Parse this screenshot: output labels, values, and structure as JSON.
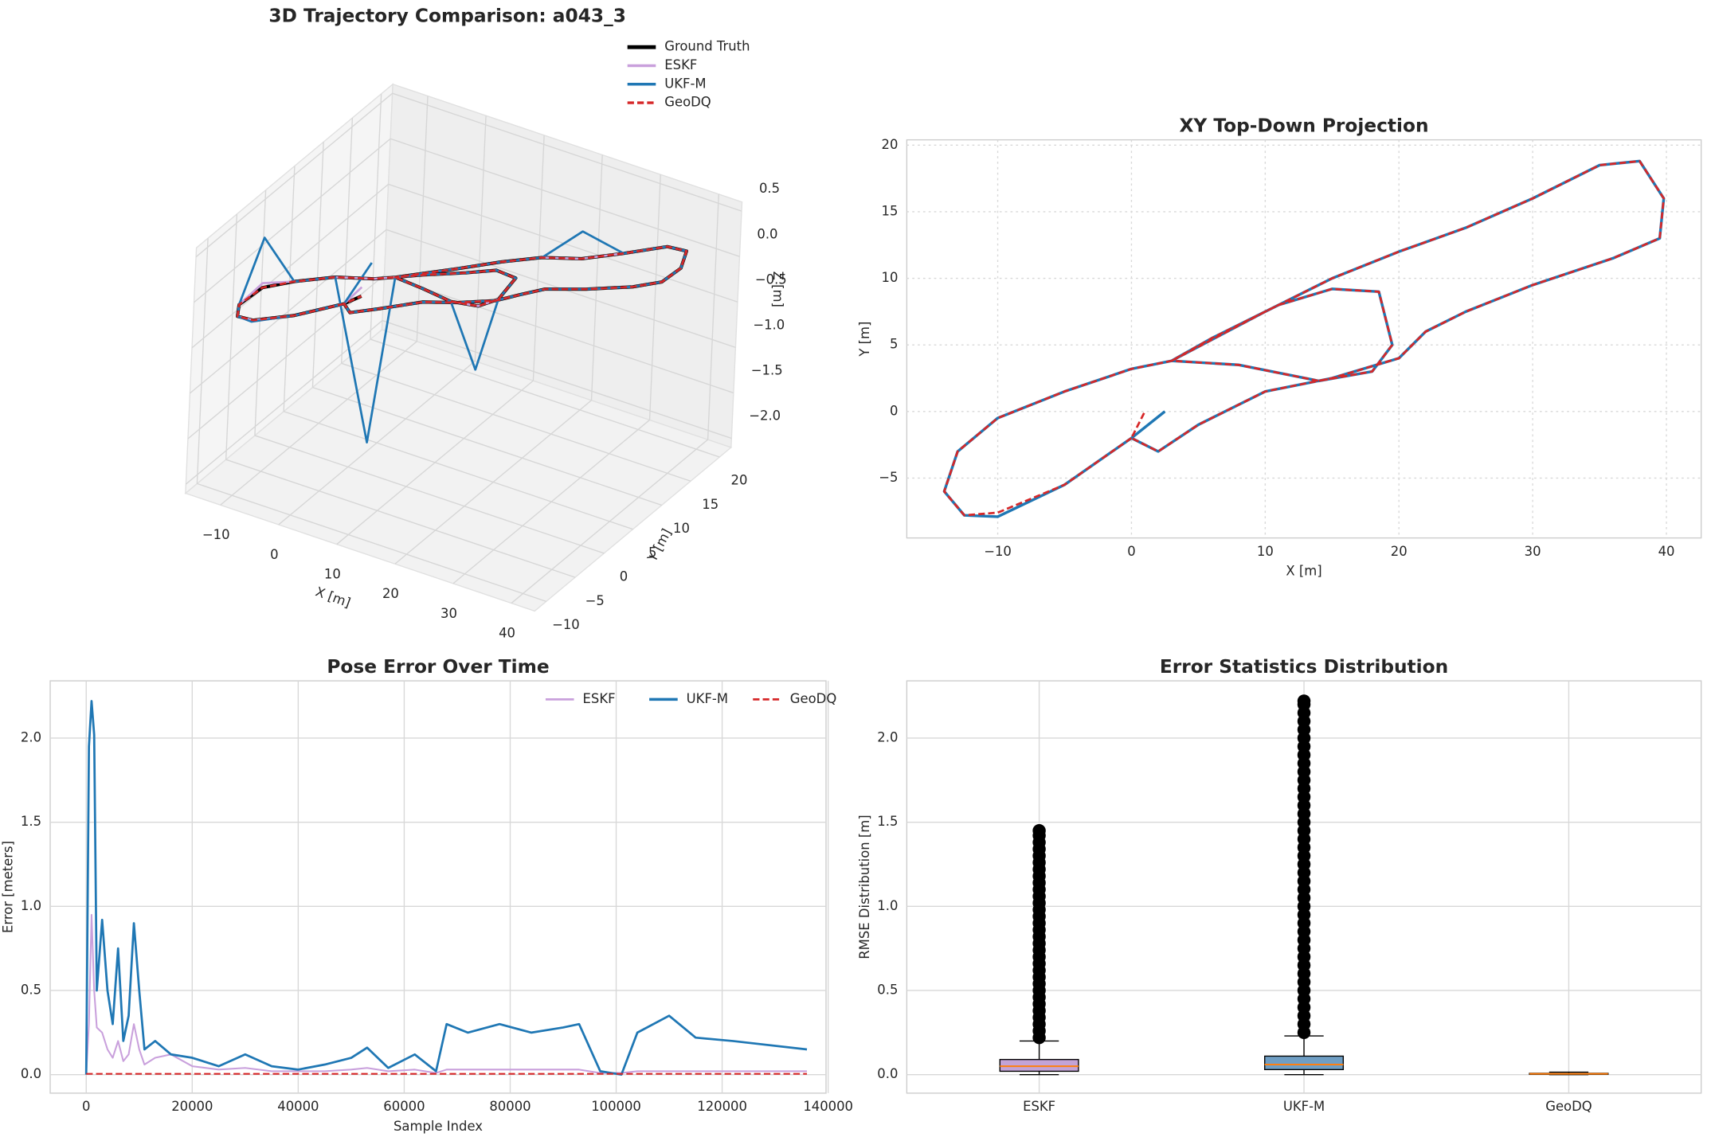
{
  "chart_data": [
    {
      "type": "line3d",
      "title": "3D Trajectory Comparison: a043_3",
      "xlabel": "X [m]",
      "ylabel": "Y [m]",
      "zlabel": "Z [m]",
      "xlim": [
        -16,
        44
      ],
      "ylim": [
        -12,
        22
      ],
      "zlim": [
        -2.1,
        0.6
      ],
      "xticks": [
        {
          "value": -10,
          "label": "−10"
        },
        0,
        10,
        20,
        30,
        40
      ],
      "yticks": [
        {
          "value": -10,
          "label": "−10"
        },
        {
          "value": -5,
          "label": "−5"
        },
        0,
        5,
        10,
        15,
        20
      ],
      "zticks": [
        {
          "value": -2,
          "label": "−2.0"
        },
        {
          "value": -1.5,
          "label": "−1.5"
        },
        {
          "value": -1,
          "label": "−1.0"
        },
        {
          "value": -0.5,
          "label": "−0.5"
        },
        {
          "value": 0,
          "label": "0.0"
        },
        0.5
      ],
      "grid": true,
      "legend": "upper right",
      "series": [
        {
          "name": "Ground Truth",
          "color": "#000000",
          "width": 3,
          "dash": false,
          "x": [
            0,
            -5,
            -10,
            -12.5,
            -14,
            -13,
            -10,
            -5,
            0,
            3,
            8,
            14,
            18,
            19.5,
            18.5,
            15,
            11,
            6,
            3,
            10,
            15,
            20,
            25,
            30,
            35,
            38,
            39.8,
            39.5,
            36,
            30,
            25,
            22,
            20,
            15,
            10,
            5,
            2,
            0,
            1
          ],
          "y": [
            -2,
            -5.5,
            -7.6,
            -7.8,
            -6,
            -3,
            -0.5,
            1.5,
            3.2,
            3.8,
            3.5,
            2.3,
            3,
            5,
            9,
            9.2,
            8,
            5.5,
            3.8,
            7.5,
            10,
            12,
            13.8,
            16,
            18.5,
            18.8,
            16,
            13,
            11.5,
            9.5,
            7.5,
            6,
            4,
            2.5,
            1.5,
            -1,
            -3,
            -2,
            0
          ],
          "z": [
            -0.2,
            -0.25,
            -0.3,
            -0.3,
            -0.3,
            -0.25,
            -0.25,
            -0.2,
            -0.2,
            -0.15,
            -0.15,
            -0.1,
            -0.1,
            -0.1,
            -0.1,
            -0.1,
            -0.15,
            -0.15,
            -0.15,
            -0.1,
            -0.05,
            0,
            0,
            0.05,
            0.1,
            0.1,
            0.1,
            0.1,
            0.05,
            0,
            0,
            -0.05,
            -0.05,
            -0.1,
            -0.15,
            -0.2,
            -0.2,
            -0.2,
            -0.2
          ]
        },
        {
          "name": "ESKF",
          "color": "#c9a0dc",
          "width": 2,
          "dash": false,
          "x": [
            0,
            -5,
            -10,
            -12.5,
            -14,
            -13,
            -10,
            -5,
            0,
            3,
            8,
            14,
            18,
            19.5,
            18.5,
            15,
            11,
            6,
            3,
            10,
            15,
            20,
            25,
            30,
            35,
            38,
            39.8,
            39.5,
            36,
            30,
            25,
            22,
            20,
            15,
            10,
            5,
            2,
            0,
            1
          ],
          "y": [
            -2,
            -5.5,
            -7.6,
            -7.8,
            -6,
            -3,
            -0.5,
            1.5,
            3.2,
            3.8,
            3.5,
            2.3,
            3,
            5,
            9,
            9.2,
            8,
            5.5,
            3.8,
            7.5,
            10,
            12,
            13.8,
            16,
            18.5,
            18.8,
            16,
            13,
            11.5,
            9.5,
            7.5,
            6,
            4,
            2.5,
            1.5,
            -1,
            -3,
            -2,
            0
          ],
          "z": [
            -0.2,
            -0.25,
            -0.3,
            -0.3,
            -0.3,
            -0.2,
            -0.25,
            -0.2,
            -0.2,
            -0.15,
            -0.15,
            -0.1,
            -0.1,
            -0.1,
            -0.1,
            -0.1,
            -0.15,
            -0.15,
            -0.15,
            -0.1,
            -0.05,
            0,
            0,
            0.05,
            0.1,
            0.1,
            0.1,
            0.1,
            0.05,
            0,
            0,
            -0.05,
            -0.05,
            -0.1,
            -0.15,
            -0.2,
            -0.2,
            -0.2,
            -0.1
          ]
        },
        {
          "name": "UKF-M",
          "color": "#1f77b4",
          "width": 2,
          "dash": false,
          "x": [
            0,
            -5,
            -10,
            -12.5,
            -14,
            -13,
            -10,
            -5,
            0,
            3,
            8,
            14,
            18,
            19.5,
            18.5,
            15,
            11,
            6,
            3,
            10,
            15,
            20,
            25,
            30,
            35,
            38,
            39.8,
            39.5,
            36,
            30,
            25,
            22,
            20,
            15,
            10,
            5,
            2,
            0,
            2.5
          ],
          "y": [
            -2,
            -5.5,
            -7.9,
            -7.8,
            -6,
            -3,
            -0.5,
            1.5,
            3.2,
            3.8,
            3.5,
            2.3,
            3,
            5,
            9,
            9.2,
            8,
            5.5,
            3.8,
            7.5,
            10,
            12,
            13.8,
            16,
            18.5,
            18.8,
            16,
            13,
            11.5,
            9.5,
            7.5,
            6,
            4,
            2.5,
            1.5,
            -1,
            -3,
            -2,
            0
          ],
          "z": [
            -0.2,
            -0.25,
            -0.3,
            -0.3,
            -0.3,
            0.3,
            -0.25,
            -0.2,
            -2,
            -0.15,
            -0.15,
            -0.1,
            -0.8,
            -0.1,
            -0.1,
            -0.1,
            -0.15,
            -0.15,
            -0.15,
            -0.1,
            -0.05,
            0,
            0.3,
            0.05,
            0.1,
            0.1,
            0.1,
            0.1,
            0.05,
            0,
            0,
            -0.05,
            -0.05,
            -0.1,
            -0.15,
            -0.2,
            -0.2,
            -0.2,
            0.2
          ]
        },
        {
          "name": "GeoDQ",
          "color": "#d62728",
          "width": 2,
          "dash": true,
          "x": [
            0,
            -5,
            -10,
            -12.5,
            -14,
            -13,
            -10,
            -5,
            0,
            3,
            8,
            14,
            18,
            19.5,
            18.5,
            15,
            11,
            6,
            3,
            10,
            15,
            20,
            25,
            30,
            35,
            38,
            39.8,
            39.5,
            36,
            30,
            25,
            22,
            20,
            15,
            10,
            5,
            2,
            0,
            1
          ],
          "y": [
            -2,
            -5.5,
            -7.6,
            -7.8,
            -6,
            -3,
            -0.5,
            1.5,
            3.2,
            3.8,
            3.5,
            2.3,
            3,
            5,
            9,
            9.2,
            8,
            5.5,
            3.8,
            7.5,
            10,
            12,
            13.8,
            16,
            18.5,
            18.8,
            16,
            13,
            11.5,
            9.5,
            7.5,
            6,
            4,
            2.5,
            1.5,
            -1,
            -3,
            -2,
            0
          ],
          "z": [
            -0.2,
            -0.25,
            -0.3,
            -0.3,
            -0.3,
            -0.25,
            -0.25,
            -0.2,
            -0.2,
            -0.15,
            -0.15,
            -0.1,
            -0.1,
            -0.1,
            -0.1,
            -0.1,
            -0.15,
            -0.15,
            -0.15,
            -0.1,
            -0.05,
            0,
            0,
            0.05,
            0.1,
            0.1,
            0.1,
            0.1,
            0.05,
            0,
            0,
            -0.05,
            -0.05,
            -0.1,
            -0.15,
            -0.2,
            -0.2,
            -0.2,
            -0.2
          ]
        }
      ]
    },
    {
      "type": "line",
      "title": "XY Top-Down Projection",
      "xlabel": "X [m]",
      "ylabel": "Y [m]",
      "xlim": [
        -16.8,
        42.6
      ],
      "ylim": [
        -9.5,
        20.4
      ],
      "xticks": [
        {
          "value": -10,
          "label": "−10"
        },
        0,
        10,
        20,
        30,
        40
      ],
      "yticks": [
        {
          "value": -5,
          "label": "−5"
        },
        0,
        5,
        10,
        15,
        20
      ],
      "grid": true,
      "grid_style": "dotted",
      "series": [
        {
          "color": "#1f77b4",
          "width": 2.5,
          "dash": false,
          "x": [
            0,
            -5,
            -10,
            -12.5,
            -14,
            -13,
            -10,
            -5,
            0,
            3,
            8,
            14,
            18,
            19.5,
            18.5,
            15,
            11,
            6,
            3,
            10,
            15,
            20,
            25,
            30,
            35,
            38,
            39.8,
            39.5,
            36,
            30,
            25,
            22,
            20,
            15,
            10,
            5,
            2,
            0,
            2.5
          ],
          "values": [
            -2,
            -5.5,
            -7.9,
            -7.8,
            -6,
            -3,
            -0.5,
            1.5,
            3.2,
            3.8,
            3.5,
            2.3,
            3,
            5,
            9,
            9.2,
            8,
            5.5,
            3.8,
            7.5,
            10,
            12,
            13.8,
            16,
            18.5,
            18.8,
            16,
            13,
            11.5,
            9.5,
            7.5,
            6,
            4,
            2.5,
            1.5,
            -1,
            -3,
            -2,
            0
          ]
        },
        {
          "color": "#d62728",
          "width": 2,
          "dash": true,
          "x": [
            0,
            -5,
            -10,
            -12.5,
            -14,
            -13,
            -10,
            -5,
            0,
            3,
            8,
            14,
            18,
            19.5,
            18.5,
            15,
            11,
            6,
            3,
            10,
            15,
            20,
            25,
            30,
            35,
            38,
            39.8,
            39.5,
            36,
            30,
            25,
            22,
            20,
            15,
            10,
            5,
            2,
            0,
            1
          ],
          "values": [
            -2,
            -5.5,
            -7.6,
            -7.8,
            -6,
            -3,
            -0.5,
            1.5,
            3.2,
            3.8,
            3.5,
            2.3,
            3,
            5,
            9,
            9.2,
            8,
            5.5,
            3.8,
            7.5,
            10,
            12,
            13.8,
            16,
            18.5,
            18.8,
            16,
            13,
            11.5,
            9.5,
            7.5,
            6,
            4,
            2.5,
            1.5,
            -1,
            -3,
            -2,
            0
          ]
        }
      ]
    },
    {
      "type": "line",
      "title": "Pose Error Over Time",
      "xlabel": "Sample Index",
      "ylabel": "Error [meters]",
      "xlim": [
        -6800,
        139600
      ],
      "ylim": [
        -0.11,
        2.34
      ],
      "xticks": [
        0,
        20000,
        40000,
        60000,
        80000,
        100000,
        120000,
        140000
      ],
      "yticks": [
        {
          "value": 0,
          "label": "0.0"
        },
        0.5,
        {
          "value": 1,
          "label": "1.0"
        },
        1.5,
        {
          "value": 2,
          "label": "2.0"
        }
      ],
      "grid": true,
      "grid_style": "solid",
      "legend": "upper right",
      "x": [
        0,
        500,
        1000,
        1500,
        2000,
        3000,
        4000,
        5000,
        6000,
        7000,
        8000,
        9000,
        10000,
        11000,
        13000,
        16000,
        20000,
        25000,
        30000,
        35000,
        40000,
        45000,
        50000,
        53000,
        57000,
        62000,
        66000,
        68000,
        72000,
        78000,
        84000,
        90000,
        93000,
        97000,
        101000,
        104000,
        110000,
        115000,
        122000,
        136000
      ],
      "series": [
        {
          "name": "ESKF",
          "color": "#c9a0dc",
          "width": 1.5,
          "dash": false,
          "values": [
            0,
            0.3,
            0.95,
            0.5,
            0.28,
            0.25,
            0.15,
            0.1,
            0.2,
            0.08,
            0.12,
            0.3,
            0.15,
            0.06,
            0.1,
            0.12,
            0.05,
            0.03,
            0.04,
            0.02,
            0.02,
            0.02,
            0.03,
            0.04,
            0.02,
            0.03,
            0.01,
            0.03,
            0.03,
            0.03,
            0.03,
            0.03,
            0.03,
            0.01,
            0.01,
            0.02,
            0.02,
            0.02,
            0.02,
            0.02
          ]
        },
        {
          "name": "UKF-M",
          "color": "#1f77b4",
          "width": 2,
          "dash": false,
          "values": [
            0,
            1.95,
            2.22,
            2.02,
            0.5,
            0.92,
            0.5,
            0.3,
            0.75,
            0.2,
            0.35,
            0.9,
            0.5,
            0.15,
            0.2,
            0.12,
            0.1,
            0.05,
            0.12,
            0.05,
            0.03,
            0.06,
            0.1,
            0.16,
            0.04,
            0.12,
            0.02,
            0.3,
            0.25,
            0.3,
            0.25,
            0.28,
            0.3,
            0.02,
            0,
            0.25,
            0.35,
            0.22,
            0.2,
            0.15
          ]
        },
        {
          "name": "GeoDQ",
          "color": "#d62728",
          "width": 1.5,
          "dash": true,
          "values": [
            0.005,
            0.005,
            0.005,
            0.005,
            0.005,
            0.005,
            0.005,
            0.005,
            0.005,
            0.005,
            0.005,
            0.005,
            0.005,
            0.005,
            0.005,
            0.005,
            0.005,
            0.005,
            0.005,
            0.005,
            0.005,
            0.005,
            0.005,
            0.005,
            0.005,
            0.005,
            0.005,
            0.005,
            0.005,
            0.005,
            0.005,
            0.005,
            0.005,
            0.005,
            0.005,
            0.005,
            0.005,
            0.005,
            0.005,
            0.005
          ]
        }
      ]
    },
    {
      "type": "box",
      "title": "Error Statistics Distribution",
      "ylabel": "RMSE Distribution [m]",
      "ylim": [
        -0.11,
        2.34
      ],
      "yticks": [
        {
          "value": 0,
          "label": "0.0"
        },
        0.5,
        {
          "value": 1,
          "label": "1.0"
        },
        1.5,
        {
          "value": 2,
          "label": "2.0"
        }
      ],
      "grid": true,
      "median_color": "#ff7f0e",
      "categories": [
        "ESKF",
        "UKF-M",
        "GeoDQ"
      ],
      "boxes": [
        {
          "color": "#c3a3d6",
          "whislo": 0,
          "q1": 0.02,
          "med": 0.05,
          "q3": 0.09,
          "whishi": 0.2,
          "fliers": [
            0.22,
            0.26,
            0.3,
            0.34,
            0.38,
            0.42,
            0.46,
            0.5,
            0.54,
            0.58,
            0.62,
            0.66,
            0.7,
            0.74,
            0.78,
            0.82,
            0.86,
            0.9,
            0.94,
            0.98,
            1.02,
            1.06,
            1.1,
            1.14,
            1.18,
            1.22,
            1.26,
            1.3,
            1.34,
            1.38,
            1.42,
            1.45
          ]
        },
        {
          "color": "#6f9ec4",
          "whislo": 0,
          "q1": 0.03,
          "med": 0.06,
          "q3": 0.11,
          "whishi": 0.23,
          "fliers": [
            0.25,
            0.3,
            0.35,
            0.4,
            0.45,
            0.5,
            0.55,
            0.6,
            0.65,
            0.7,
            0.75,
            0.8,
            0.85,
            0.9,
            0.95,
            1,
            1.05,
            1.1,
            1.15,
            1.2,
            1.25,
            1.3,
            1.35,
            1.4,
            1.45,
            1.5,
            1.55,
            1.6,
            1.65,
            1.7,
            1.75,
            1.8,
            1.85,
            1.9,
            1.95,
            2,
            2.05,
            2.1,
            2.15,
            2.2,
            2.22
          ]
        },
        {
          "color": "#e8a04a",
          "whislo": 0,
          "q1": 0.002,
          "med": 0.005,
          "q3": 0.008,
          "whishi": 0.015,
          "fliers": []
        }
      ]
    }
  ]
}
